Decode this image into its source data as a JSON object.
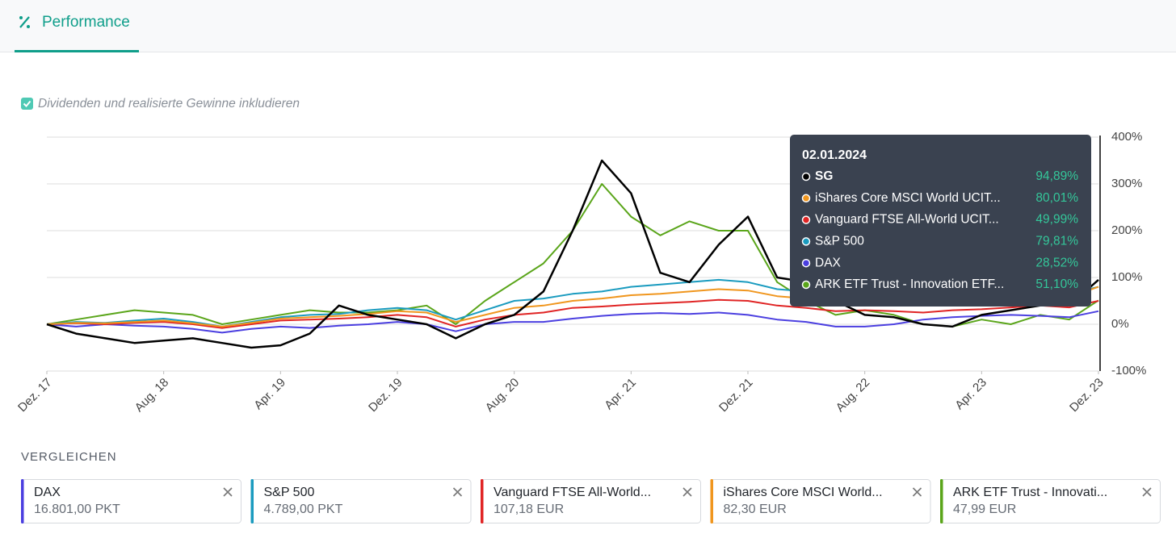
{
  "header": {
    "tab": "Performance"
  },
  "option": {
    "label": "Dividenden und realisierte Gewinne inkludieren"
  },
  "chart_data": {
    "type": "line",
    "x": [
      "2017-12",
      "2018-02",
      "2018-04",
      "2018-06",
      "2018-08",
      "2018-10",
      "2018-12",
      "2019-02",
      "2019-04",
      "2019-06",
      "2019-08",
      "2019-10",
      "2019-12",
      "2020-02",
      "2020-04",
      "2020-06",
      "2020-08",
      "2020-10",
      "2020-12",
      "2021-02",
      "2021-04",
      "2021-06",
      "2021-08",
      "2021-10",
      "2021-12",
      "2022-02",
      "2022-04",
      "2022-06",
      "2022-08",
      "2022-10",
      "2022-12",
      "2023-02",
      "2023-04",
      "2023-06",
      "2023-08",
      "2023-10",
      "2023-12"
    ],
    "xlim": [
      "2017-12",
      "2023-12"
    ],
    "xticks": [
      {
        "value": "2017-12",
        "label": "Dez. 17"
      },
      {
        "value": "2018-08",
        "label": "Aug. 18"
      },
      {
        "value": "2019-04",
        "label": "Apr. 19"
      },
      {
        "value": "2019-12",
        "label": "Dez. 19"
      },
      {
        "value": "2020-08",
        "label": "Aug. 20"
      },
      {
        "value": "2021-04",
        "label": "Apr. 21"
      },
      {
        "value": "2021-12",
        "label": "Dez. 21"
      },
      {
        "value": "2022-08",
        "label": "Aug. 22"
      },
      {
        "value": "2023-04",
        "label": "Apr. 23"
      },
      {
        "value": "2023-12",
        "label": "Dez. 23"
      }
    ],
    "ylim": [
      -100,
      400
    ],
    "yticks": [
      {
        "value": -100,
        "label": "-100%"
      },
      {
        "value": 0,
        "label": "0%"
      },
      {
        "value": 100,
        "label": "100%"
      },
      {
        "value": 200,
        "label": "200%"
      },
      {
        "value": 300,
        "label": "300%"
      },
      {
        "value": 400,
        "label": "400%"
      }
    ],
    "grid": true,
    "series": [
      {
        "name": "SG",
        "color": "#000000",
        "values": [
          0,
          -20,
          -30,
          -40,
          -35,
          -30,
          -40,
          -50,
          -45,
          -20,
          40,
          20,
          10,
          0,
          -30,
          0,
          20,
          70,
          200,
          350,
          280,
          110,
          90,
          170,
          230,
          100,
          90,
          50,
          20,
          15,
          0,
          -5,
          20,
          30,
          40,
          40,
          95
        ]
      },
      {
        "name": "iShares Core MSCI World UCIT...",
        "color": "#f0961e",
        "values": [
          0,
          3,
          2,
          5,
          8,
          2,
          -5,
          3,
          12,
          15,
          18,
          22,
          28,
          25,
          5,
          20,
          35,
          40,
          50,
          55,
          62,
          65,
          70,
          75,
          72,
          60,
          55,
          45,
          48,
          45,
          40,
          48,
          52,
          58,
          62,
          58,
          80
        ]
      },
      {
        "name": "Vanguard FTSE All-World UCIT...",
        "color": "#e02424",
        "values": [
          0,
          2,
          0,
          3,
          5,
          0,
          -8,
          0,
          8,
          10,
          12,
          15,
          20,
          15,
          -5,
          10,
          20,
          25,
          35,
          38,
          42,
          45,
          48,
          52,
          50,
          40,
          35,
          28,
          30,
          28,
          25,
          30,
          32,
          36,
          40,
          36,
          50
        ]
      },
      {
        "name": "S&P 500",
        "color": "#1a9bbf",
        "values": [
          0,
          5,
          3,
          8,
          12,
          5,
          -5,
          5,
          15,
          20,
          22,
          30,
          35,
          30,
          10,
          30,
          50,
          55,
          65,
          70,
          80,
          85,
          90,
          95,
          90,
          75,
          70,
          60,
          60,
          55,
          50,
          55,
          60,
          65,
          70,
          65,
          80
        ]
      },
      {
        "name": "DAX",
        "color": "#4b3fe0",
        "values": [
          0,
          -5,
          0,
          -3,
          -5,
          -10,
          -18,
          -10,
          -5,
          -8,
          -3,
          0,
          5,
          0,
          -15,
          0,
          5,
          5,
          12,
          18,
          22,
          24,
          22,
          25,
          20,
          10,
          5,
          -5,
          -5,
          0,
          10,
          15,
          18,
          20,
          18,
          15,
          28
        ]
      },
      {
        "name": "ARK ETF Trust - Innovation ETF...",
        "color": "#5aa51a",
        "values": [
          0,
          10,
          20,
          30,
          25,
          20,
          0,
          10,
          20,
          30,
          25,
          25,
          30,
          40,
          0,
          50,
          90,
          130,
          200,
          300,
          230,
          190,
          220,
          200,
          200,
          90,
          50,
          20,
          30,
          20,
          0,
          -5,
          10,
          0,
          20,
          10,
          51
        ]
      }
    ],
    "tooltip": {
      "date": "02.01.2024",
      "values": [
        94.89,
        80.01,
        49.99,
        79.81,
        28.52,
        51.1
      ],
      "value_labels": [
        "94,89%",
        "80,01%",
        "49,99%",
        "79,81%",
        "28,52%",
        "51,10%"
      ]
    }
  },
  "compare": {
    "title": "VERGLEICHEN",
    "cards": [
      {
        "name": "DAX",
        "price": "16.801,00 PKT",
        "color": "#4b3fe0"
      },
      {
        "name": "S&P 500",
        "price": "4.789,00 PKT",
        "color": "#1a9bbf"
      },
      {
        "name": "Vanguard FTSE All-World...",
        "price": "107,18 EUR",
        "color": "#e02424"
      },
      {
        "name": "iShares Core MSCI World...",
        "price": "82,30 EUR",
        "color": "#f0961e"
      },
      {
        "name": "ARK ETF Trust - Innovati...",
        "price": "47,99 EUR",
        "color": "#5aa51a"
      }
    ]
  }
}
